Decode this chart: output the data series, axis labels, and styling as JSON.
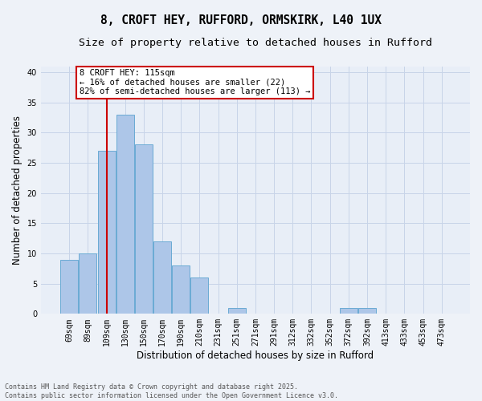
{
  "title1": "8, CROFT HEY, RUFFORD, ORMSKIRK, L40 1UX",
  "title2": "Size of property relative to detached houses in Rufford",
  "xlabel": "Distribution of detached houses by size in Rufford",
  "ylabel": "Number of detached properties",
  "categories": [
    "69sqm",
    "89sqm",
    "109sqm",
    "130sqm",
    "150sqm",
    "170sqm",
    "190sqm",
    "210sqm",
    "231sqm",
    "251sqm",
    "271sqm",
    "291sqm",
    "312sqm",
    "332sqm",
    "352sqm",
    "372sqm",
    "392sqm",
    "413sqm",
    "433sqm",
    "453sqm",
    "473sqm"
  ],
  "values": [
    9,
    10,
    27,
    33,
    28,
    12,
    8,
    6,
    0,
    1,
    0,
    0,
    0,
    0,
    0,
    1,
    1,
    0,
    0,
    0,
    0
  ],
  "bar_color": "#adc6e8",
  "bar_edge_color": "#6aaad4",
  "vline_color": "#cc0000",
  "annotation_text": "8 CROFT HEY: 115sqm\n← 16% of detached houses are smaller (22)\n82% of semi-detached houses are larger (113) →",
  "annotation_box_color": "#ffffff",
  "annotation_box_edge": "#cc0000",
  "ylim": [
    0,
    41
  ],
  "yticks": [
    0,
    5,
    10,
    15,
    20,
    25,
    30,
    35,
    40
  ],
  "grid_color": "#c8d4e8",
  "bg_color": "#e8eef7",
  "fig_bg_color": "#eef2f8",
  "footnote": "Contains HM Land Registry data © Crown copyright and database right 2025.\nContains public sector information licensed under the Open Government Licence v3.0.",
  "title_fontsize": 10.5,
  "subtitle_fontsize": 9.5,
  "tick_fontsize": 7,
  "ylabel_fontsize": 8.5,
  "xlabel_fontsize": 8.5,
  "annotation_fontsize": 7.5,
  "footnote_fontsize": 6
}
